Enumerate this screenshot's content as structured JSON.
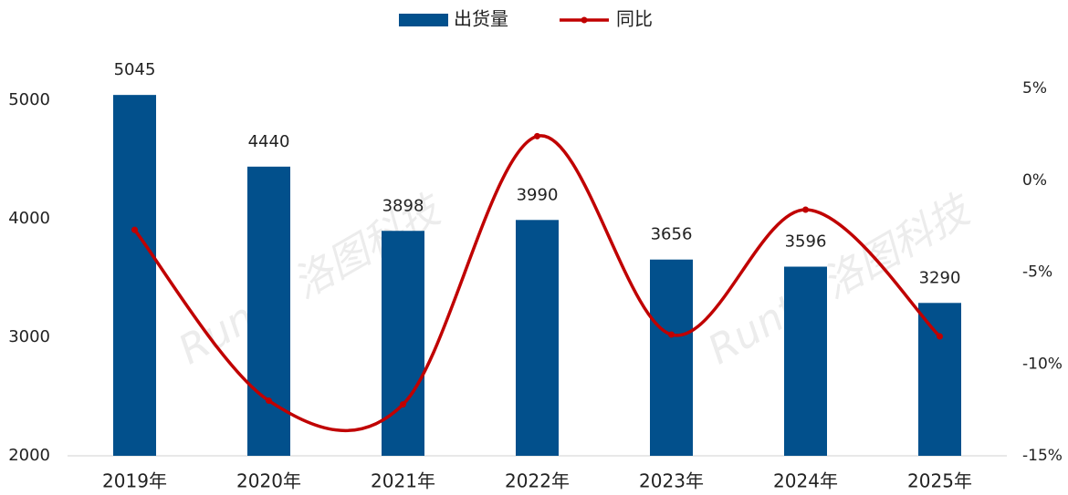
{
  "chart_data": {
    "type": "bar",
    "categories": [
      "2019年",
      "2020年",
      "2021年",
      "2022年",
      "2023年",
      "2024年",
      "2025年"
    ],
    "series": [
      {
        "name": "出货量",
        "type": "bar",
        "color": "#02508c",
        "values": [
          5045,
          4440,
          3898,
          3990,
          3656,
          3596,
          3290
        ]
      },
      {
        "name": "同比",
        "type": "line",
        "axis": "y2",
        "color": "#c00000",
        "values": [
          -2.7,
          -12.0,
          -12.2,
          2.4,
          -8.4,
          -1.6,
          -8.5
        ]
      }
    ],
    "ylim": [
      2000,
      5100
    ],
    "yticks": [
      2000,
      3000,
      4000,
      5000
    ],
    "y2lim": [
      -15,
      5
    ],
    "y2ticks": [
      {
        "value": 5,
        "label": "5%"
      },
      {
        "value": 0,
        "label": "0%"
      },
      {
        "value": -5,
        "label": "-5%"
      },
      {
        "value": -10,
        "label": "-10%"
      },
      {
        "value": -15,
        "label": "-15%"
      }
    ],
    "watermark": "Runto 洛图科技"
  }
}
